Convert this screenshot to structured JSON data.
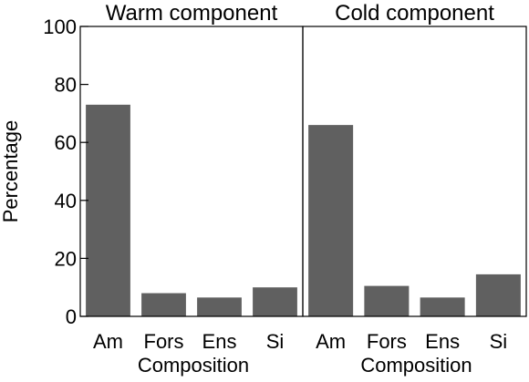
{
  "chart_data": [
    {
      "type": "bar",
      "title": "Warm component",
      "xlabel": "Composition",
      "ylabel": "Percentage",
      "categories": [
        "Am",
        "Fors",
        "Ens",
        "Si"
      ],
      "values": [
        73,
        8,
        6.5,
        10
      ],
      "ylim": [
        0,
        100
      ],
      "yticks": [
        0,
        20,
        40,
        60,
        80,
        100
      ],
      "grid": false,
      "bar_color": "#606060"
    },
    {
      "type": "bar",
      "title": "Cold component",
      "xlabel": "Composition",
      "ylabel": "",
      "categories": [
        "Am",
        "Fors",
        "Ens",
        "Si"
      ],
      "values": [
        66,
        10.5,
        6.5,
        14.5
      ],
      "ylim": [
        0,
        100
      ],
      "yticks": [],
      "grid": false,
      "bar_color": "#606060"
    }
  ]
}
